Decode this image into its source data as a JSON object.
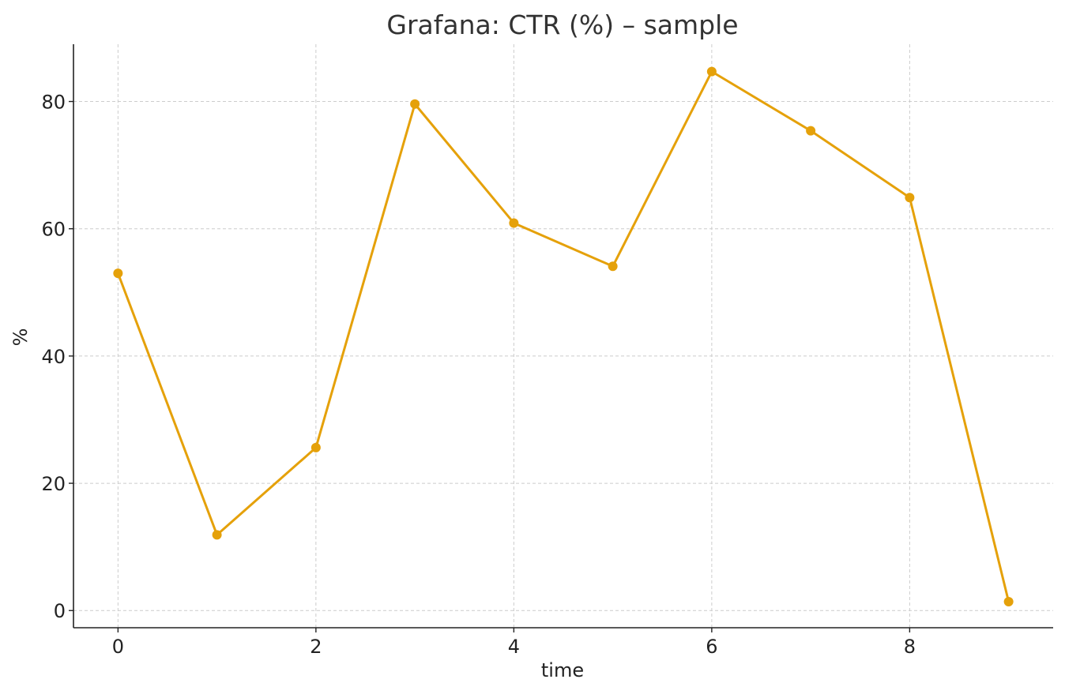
{
  "chart_data": {
    "type": "line",
    "title": "Grafana: CTR (%) – sample",
    "xlabel": "time",
    "ylabel": "%",
    "x": [
      0,
      1,
      2,
      3,
      4,
      5,
      6,
      7,
      8,
      9
    ],
    "series": [
      {
        "values": [
          53.0,
          11.9,
          25.6,
          79.6,
          60.9,
          54.1,
          84.7,
          75.4,
          64.9,
          1.4
        ],
        "color": "#E5A10A",
        "marker": "circle"
      }
    ],
    "xlim": [
      -0.45,
      9.45
    ],
    "ylim": [
      -2.7,
      89
    ],
    "xticks": [
      0,
      2,
      4,
      6,
      8
    ],
    "yticks": [
      0,
      20,
      40,
      60,
      80
    ],
    "grid": true,
    "legend": "none"
  }
}
